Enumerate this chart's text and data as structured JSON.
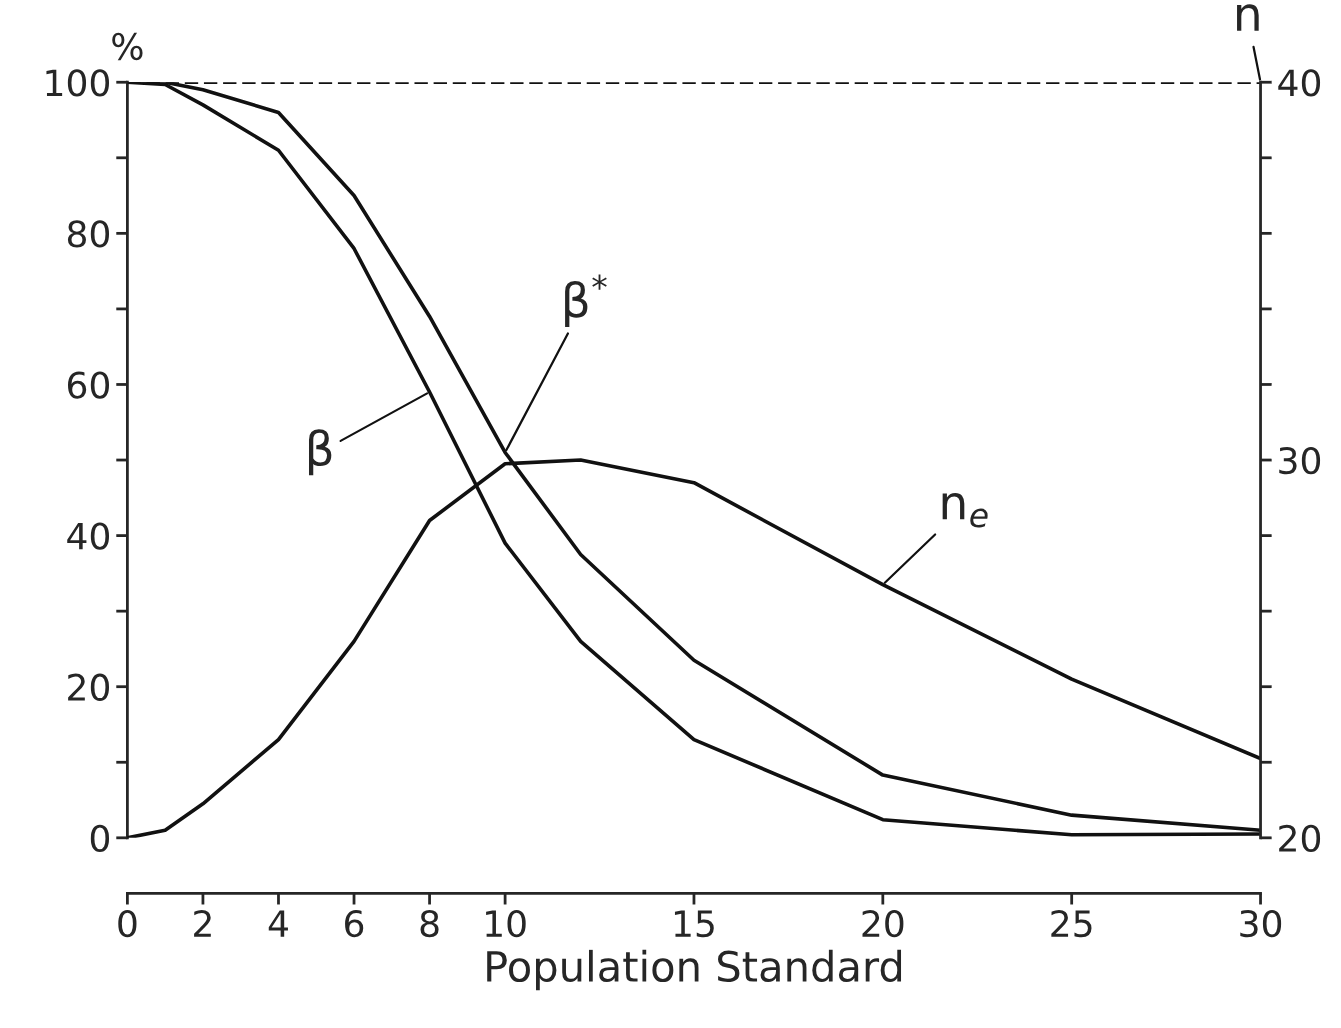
{
  "chart_data": {
    "type": "line",
    "xlabel": "Population Standard",
    "ylabel": "%",
    "x": [
      0,
      1,
      2,
      4,
      6,
      8,
      10,
      12,
      15,
      20,
      25,
      30
    ],
    "series": [
      {
        "name": "β",
        "color": "#111111",
        "values": [
          100,
          99.7,
          97,
          91,
          78,
          59,
          39,
          26,
          13,
          2.4,
          0.4,
          0.5
        ]
      },
      {
        "name": "β$^{*}$",
        "color": "#111111",
        "values": [
          100,
          100,
          99,
          96,
          85,
          69,
          51,
          37.5,
          23.5,
          8.3,
          3,
          1
        ]
      },
      {
        "name": "n$_{e}$",
        "color": "#111111",
        "axis": "y2",
        "values": [
          20,
          20.2,
          20.9,
          22.6,
          25.2,
          28.4,
          29.9,
          30,
          29.4,
          26.7,
          24.2,
          22.1
        ]
      },
      {
        "name": "n",
        "color": "#111111",
        "axis": "y2",
        "line_style": "dashed",
        "values": [
          40,
          40,
          40,
          40,
          40,
          40,
          40,
          40,
          40,
          40,
          40,
          40
        ]
      }
    ],
    "xlim": [
      0,
      30
    ],
    "xticks": [
      0,
      2,
      4,
      6,
      8,
      10,
      15,
      20,
      25,
      30
    ],
    "ylim": [
      0,
      100
    ],
    "yticks": [
      0,
      {
        "value": 10,
        "label": null
      },
      20,
      {
        "value": 30,
        "label": null
      },
      40,
      {
        "value": 50,
        "label": null
      },
      60,
      {
        "value": 70,
        "label": null
      },
      80,
      {
        "value": 90,
        "label": null
      },
      100
    ],
    "y2lim": [
      20,
      40
    ],
    "y2ticks": [
      20,
      {
        "value": 22,
        "label": null
      },
      {
        "value": 24,
        "label": null
      },
      {
        "value": 26,
        "label": null
      },
      {
        "value": 28,
        "label": null
      },
      30,
      {
        "value": 32,
        "label": null
      },
      {
        "value": 34,
        "label": null
      },
      {
        "value": 36,
        "label": null
      },
      {
        "value": 38,
        "label": null
      },
      40
    ],
    "grid": false,
    "legend": false,
    "marker": "none",
    "line_style": "solid"
  }
}
